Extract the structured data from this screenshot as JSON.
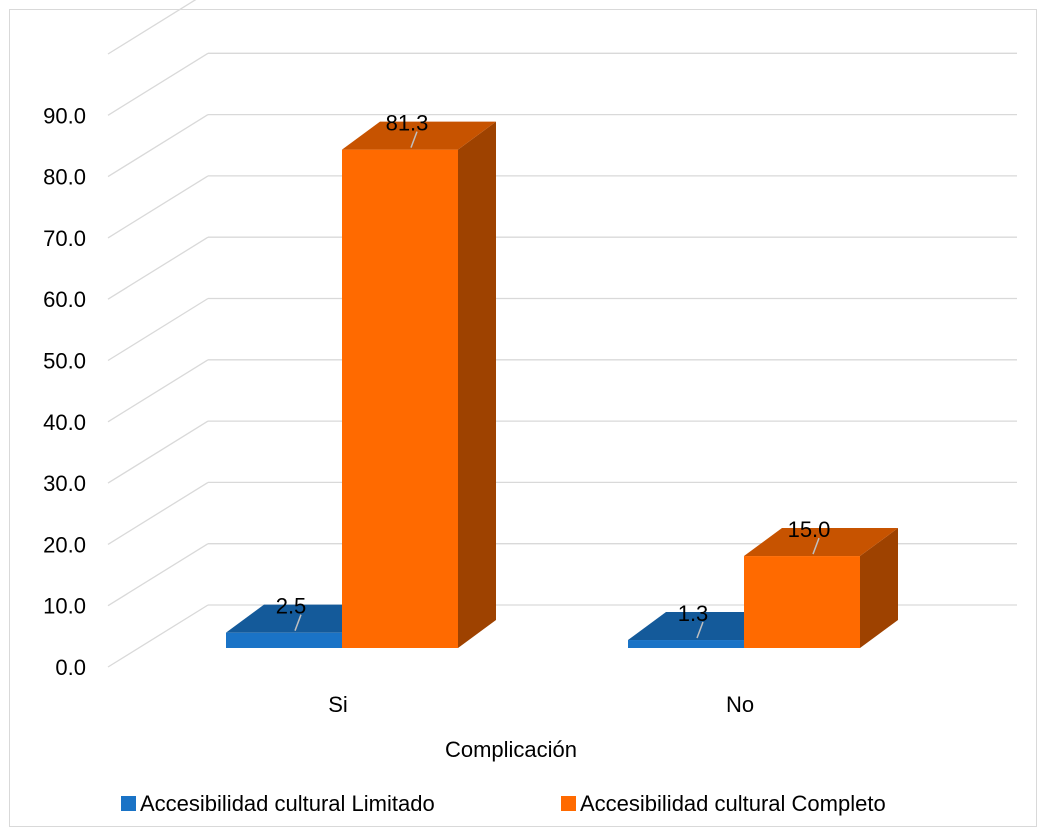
{
  "chart_data": {
    "type": "bar",
    "categories": [
      "Si",
      "No"
    ],
    "series": [
      {
        "name": "Accesibilidad cultural Limitado",
        "values": [
          2.5,
          1.3
        ],
        "labels": [
          "2.5",
          "1.3"
        ],
        "color": "#1a73c6"
      },
      {
        "name": "Accesibilidad cultural Completo",
        "values": [
          81.3,
          15.0
        ],
        "labels": [
          "81.3",
          "15.0"
        ],
        "color": "#ff6a00"
      }
    ],
    "xlabel": "Complicación",
    "ylabel": "",
    "ylim": [
      0,
      90
    ],
    "yticks": [
      "0.0",
      "10.0",
      "20.0",
      "30.0",
      "40.0",
      "50.0",
      "60.0",
      "70.0",
      "80.0",
      "90.0"
    ],
    "legend_position": "bottom",
    "grid": true,
    "style": "3d-clustered-column"
  }
}
